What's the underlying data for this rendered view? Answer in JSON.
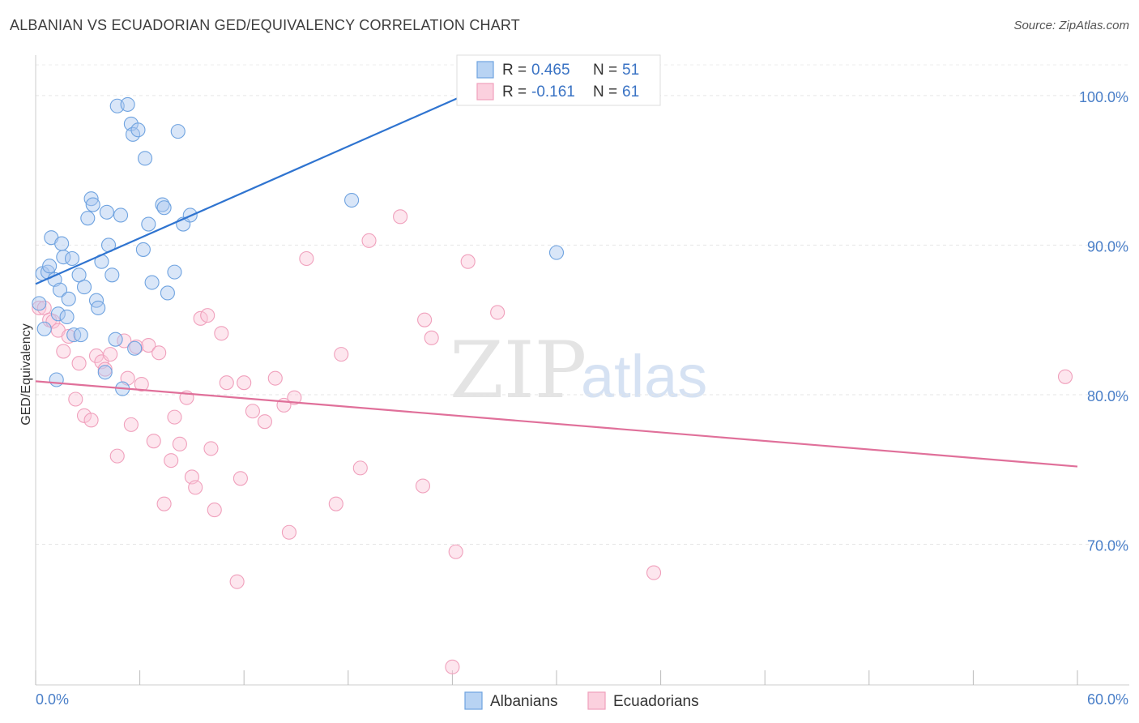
{
  "header": {
    "title": "ALBANIAN VS ECUADORIAN GED/EQUIVALENCY CORRELATION CHART",
    "source": "Source: ZipAtlas.com"
  },
  "watermark": {
    "zip": "ZIP",
    "atlas": "atlas"
  },
  "chart_data": {
    "type": "scatter",
    "title": "ALBANIAN VS ECUADORIAN GED/EQUIVALENCY CORRELATION CHART",
    "xlabel": "",
    "ylabel": "GED/Equivalency",
    "xlim": [
      0,
      60
    ],
    "ylim": [
      60.6,
      102.7
    ],
    "x_tick_labels": [
      "0.0%",
      "60.0%"
    ],
    "y_ticks": [
      70,
      80,
      90,
      100
    ],
    "y_tick_labels": [
      "70.0%",
      "80.0%",
      "90.0%",
      "100.0%"
    ],
    "grid": true,
    "legend_position": "top-center",
    "colors": {
      "albanians": "#6fa3e0",
      "ecuadorians": "#f0a0bc",
      "albanians_line": "#2f74d0",
      "ecuadorians_line": "#e0709a",
      "axis_text": "#4a7fc8"
    },
    "stats": [
      {
        "series": "Albanians",
        "r_label": "R =",
        "r": "0.465",
        "n_label": "N =",
        "n": "51"
      },
      {
        "series": "Ecuadorians",
        "r_label": "R =",
        "r": "-0.161",
        "n_label": "N =",
        "n": "61"
      }
    ],
    "series": [
      {
        "name": "Albanians",
        "trend": {
          "x": [
            0.0,
            27.0
          ],
          "y": [
            87.4,
            101.2
          ]
        },
        "points": [
          {
            "x": 0.2,
            "y": 86.1
          },
          {
            "x": 0.4,
            "y": 88.1
          },
          {
            "x": 0.5,
            "y": 84.4
          },
          {
            "x": 0.7,
            "y": 88.2
          },
          {
            "x": 0.8,
            "y": 88.6
          },
          {
            "x": 0.9,
            "y": 90.5
          },
          {
            "x": 1.1,
            "y": 87.7
          },
          {
            "x": 1.2,
            "y": 81.0
          },
          {
            "x": 1.3,
            "y": 85.4
          },
          {
            "x": 1.4,
            "y": 87.0
          },
          {
            "x": 1.5,
            "y": 90.1
          },
          {
            "x": 1.6,
            "y": 89.2
          },
          {
            "x": 1.8,
            "y": 85.2
          },
          {
            "x": 1.9,
            "y": 86.4
          },
          {
            "x": 2.1,
            "y": 89.1
          },
          {
            "x": 2.2,
            "y": 84.0
          },
          {
            "x": 2.5,
            "y": 88.0
          },
          {
            "x": 2.6,
            "y": 84.0
          },
          {
            "x": 2.8,
            "y": 87.2
          },
          {
            "x": 3.0,
            "y": 91.8
          },
          {
            "x": 3.2,
            "y": 93.1
          },
          {
            "x": 3.3,
            "y": 92.7
          },
          {
            "x": 3.5,
            "y": 86.3
          },
          {
            "x": 3.6,
            "y": 85.8
          },
          {
            "x": 3.8,
            "y": 88.9
          },
          {
            "x": 4.0,
            "y": 81.5
          },
          {
            "x": 4.1,
            "y": 92.2
          },
          {
            "x": 4.2,
            "y": 90.0
          },
          {
            "x": 4.4,
            "y": 88.0
          },
          {
            "x": 4.6,
            "y": 83.7
          },
          {
            "x": 4.7,
            "y": 99.3
          },
          {
            "x": 4.9,
            "y": 92.0
          },
          {
            "x": 5.0,
            "y": 80.4
          },
          {
            "x": 5.3,
            "y": 99.4
          },
          {
            "x": 5.5,
            "y": 98.1
          },
          {
            "x": 5.6,
            "y": 97.4
          },
          {
            "x": 5.7,
            "y": 83.1
          },
          {
            "x": 5.9,
            "y": 97.7
          },
          {
            "x": 6.2,
            "y": 89.7
          },
          {
            "x": 6.3,
            "y": 95.8
          },
          {
            "x": 6.5,
            "y": 91.4
          },
          {
            "x": 6.7,
            "y": 87.5
          },
          {
            "x": 7.3,
            "y": 92.7
          },
          {
            "x": 7.4,
            "y": 92.5
          },
          {
            "x": 7.6,
            "y": 86.8
          },
          {
            "x": 8.5,
            "y": 91.4
          },
          {
            "x": 8.9,
            "y": 92.0
          },
          {
            "x": 8.0,
            "y": 88.2
          },
          {
            "x": 8.2,
            "y": 97.6
          },
          {
            "x": 18.2,
            "y": 93.0
          },
          {
            "x": 30.0,
            "y": 89.5
          }
        ]
      },
      {
        "name": "Ecuadorians",
        "trend": {
          "x": [
            0.0,
            60.0
          ],
          "y": [
            80.9,
            75.2
          ]
        },
        "points": [
          {
            "x": 0.2,
            "y": 85.8
          },
          {
            "x": 0.5,
            "y": 85.8
          },
          {
            "x": 0.8,
            "y": 85.0
          },
          {
            "x": 1.0,
            "y": 84.9
          },
          {
            "x": 1.3,
            "y": 84.3
          },
          {
            "x": 1.6,
            "y": 82.9
          },
          {
            "x": 1.9,
            "y": 83.9
          },
          {
            "x": 2.3,
            "y": 79.7
          },
          {
            "x": 2.5,
            "y": 82.1
          },
          {
            "x": 2.8,
            "y": 78.6
          },
          {
            "x": 3.2,
            "y": 78.3
          },
          {
            "x": 3.5,
            "y": 82.6
          },
          {
            "x": 3.8,
            "y": 82.2
          },
          {
            "x": 4.0,
            "y": 81.7
          },
          {
            "x": 4.3,
            "y": 82.7
          },
          {
            "x": 4.7,
            "y": 75.9
          },
          {
            "x": 5.1,
            "y": 83.6
          },
          {
            "x": 5.3,
            "y": 81.1
          },
          {
            "x": 5.5,
            "y": 78.0
          },
          {
            "x": 5.8,
            "y": 83.2
          },
          {
            "x": 6.1,
            "y": 80.7
          },
          {
            "x": 6.5,
            "y": 83.3
          },
          {
            "x": 6.8,
            "y": 76.9
          },
          {
            "x": 7.1,
            "y": 82.8
          },
          {
            "x": 7.4,
            "y": 72.7
          },
          {
            "x": 7.8,
            "y": 75.6
          },
          {
            "x": 8.0,
            "y": 78.5
          },
          {
            "x": 8.3,
            "y": 76.7
          },
          {
            "x": 8.7,
            "y": 79.8
          },
          {
            "x": 9.0,
            "y": 74.5
          },
          {
            "x": 9.2,
            "y": 73.8
          },
          {
            "x": 9.5,
            "y": 85.1
          },
          {
            "x": 9.9,
            "y": 85.3
          },
          {
            "x": 10.1,
            "y": 76.4
          },
          {
            "x": 10.3,
            "y": 72.3
          },
          {
            "x": 10.7,
            "y": 84.1
          },
          {
            "x": 11.0,
            "y": 80.8
          },
          {
            "x": 11.6,
            "y": 67.5
          },
          {
            "x": 11.8,
            "y": 74.4
          },
          {
            "x": 12.0,
            "y": 80.8
          },
          {
            "x": 12.5,
            "y": 78.9
          },
          {
            "x": 13.2,
            "y": 78.2
          },
          {
            "x": 13.8,
            "y": 81.1
          },
          {
            "x": 14.3,
            "y": 79.3
          },
          {
            "x": 14.6,
            "y": 70.8
          },
          {
            "x": 14.9,
            "y": 79.8
          },
          {
            "x": 15.6,
            "y": 89.1
          },
          {
            "x": 17.3,
            "y": 72.7
          },
          {
            "x": 17.6,
            "y": 82.7
          },
          {
            "x": 18.7,
            "y": 75.1
          },
          {
            "x": 19.2,
            "y": 90.3
          },
          {
            "x": 21.0,
            "y": 91.9
          },
          {
            "x": 22.3,
            "y": 73.9
          },
          {
            "x": 22.4,
            "y": 85.0
          },
          {
            "x": 22.8,
            "y": 83.8
          },
          {
            "x": 24.2,
            "y": 69.5
          },
          {
            "x": 24.0,
            "y": 61.8
          },
          {
            "x": 24.9,
            "y": 88.9
          },
          {
            "x": 26.6,
            "y": 85.5
          },
          {
            "x": 35.6,
            "y": 68.1
          },
          {
            "x": 59.3,
            "y": 81.2
          }
        ]
      }
    ]
  }
}
